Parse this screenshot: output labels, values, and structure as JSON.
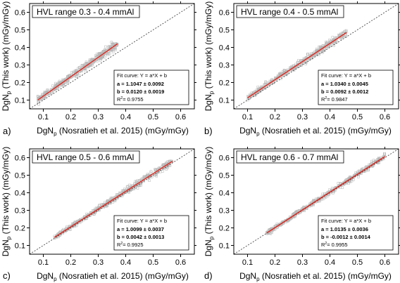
{
  "common": {
    "x_label_main": "DgN",
    "x_label_sub": "p",
    "x_label_rest": " (Nosratieh et al. 2015) (mGy/mGy)",
    "y_label_main": "DgN",
    "y_label_sub": "p",
    "y_label_rest": " (This work) (mGy/mGy)",
    "fit_title": "Fit curve: Y = a*X + b"
  },
  "chart_data": [
    {
      "type": "scatter",
      "panel_letter": "a)",
      "title": "HVL range 0.3 - 0.4 mmAl",
      "xlim": [
        0.05,
        0.65
      ],
      "ylim": [
        0.05,
        0.65
      ],
      "xticks": [
        "0.1",
        "0.2",
        "0.3",
        "0.4",
        "0.5",
        "0.6"
      ],
      "yticks": [
        "0.1",
        "0.2",
        "0.3",
        "0.4",
        "0.5",
        "0.6"
      ],
      "grid": false,
      "data_x_range": [
        0.08,
        0.37
      ],
      "identity_line": true,
      "fit": {
        "slope": 1.1047,
        "intercept": 0.012,
        "a_text": "a = 1.1047 ± 0.0092",
        "b_text": "b = 0.0120 ± 0.0019",
        "r2_label": "R",
        "r2_value": "= 0.9755"
      }
    },
    {
      "type": "scatter",
      "panel_letter": "b)",
      "title": "HVL range 0.4 - 0.5 mmAl",
      "xlim": [
        0.05,
        0.65
      ],
      "ylim": [
        0.05,
        0.65
      ],
      "xticks": [
        "0.1",
        "0.2",
        "0.3",
        "0.4",
        "0.5",
        "0.6"
      ],
      "yticks": [
        "0.1",
        "0.2",
        "0.3",
        "0.4",
        "0.5",
        "0.6"
      ],
      "grid": false,
      "data_x_range": [
        0.1,
        0.46
      ],
      "identity_line": true,
      "fit": {
        "slope": 1.034,
        "intercept": 0.0092,
        "a_text": "a = 1.0340 ± 0.0045",
        "b_text": "b = 0.0092 ± 0.0012",
        "r2_label": "R",
        "r2_value": "= 0.9847"
      }
    },
    {
      "type": "scatter",
      "panel_letter": "c)",
      "title": "HVL range 0.5 - 0.6 mmAl",
      "xlim": [
        0.05,
        0.65
      ],
      "ylim": [
        0.05,
        0.65
      ],
      "xticks": [
        "0.1",
        "0.2",
        "0.3",
        "0.4",
        "0.5",
        "0.6"
      ],
      "yticks": [
        "0.1",
        "0.2",
        "0.3",
        "0.4",
        "0.5",
        "0.6"
      ],
      "grid": false,
      "data_x_range": [
        0.14,
        0.57
      ],
      "identity_line": true,
      "fit": {
        "slope": 1.0099,
        "intercept": 0.0042,
        "a_text": "a = 1.0099 ± 0.0037",
        "b_text": "b = 0.0042 ± 0.0013",
        "r2_label": "R",
        "r2_value": "= 0.9925"
      }
    },
    {
      "type": "scatter",
      "panel_letter": "d)",
      "title": "HVL range 0.6 - 0.7 mmAl",
      "xlim": [
        0.05,
        0.65
      ],
      "ylim": [
        0.05,
        0.65
      ],
      "xticks": [
        "0.1",
        "0.2",
        "0.3",
        "0.4",
        "0.5",
        "0.6"
      ],
      "yticks": [
        "0.1",
        "0.2",
        "0.3",
        "0.4",
        "0.5",
        "0.6"
      ],
      "grid": false,
      "data_x_range": [
        0.17,
        0.6
      ],
      "identity_line": true,
      "fit": {
        "slope": 1.0135,
        "intercept": -0.0012,
        "a_text": "a = 1.0135 ± 0.0036",
        "b_text": "b = -0.0012 ± 0.0014",
        "r2_label": "R",
        "r2_value": "= 0.9955"
      }
    }
  ]
}
